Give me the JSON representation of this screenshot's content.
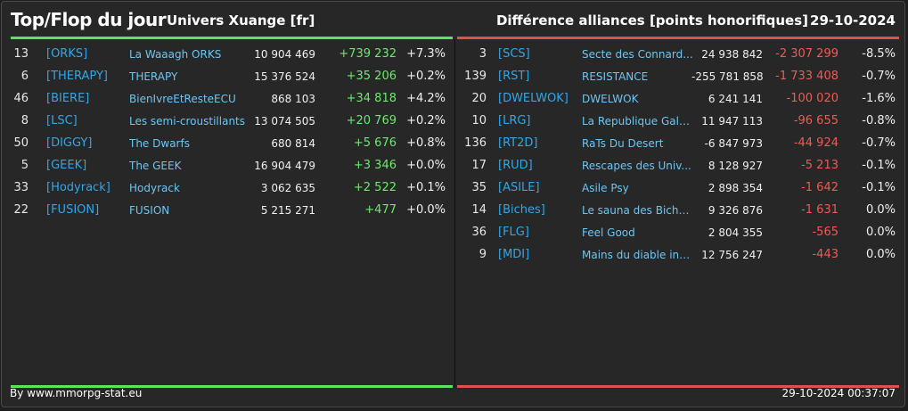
{
  "header": {
    "title": "Top/Flop du jour",
    "universe": "Univers Xuange [fr]",
    "subject": "Différence alliances [points honorifiques]",
    "date": "29-10-2024"
  },
  "colors": {
    "top": "#5ee35e",
    "flop": "#e0504c",
    "tag": "#33a6e8",
    "name": "#6ec5f2"
  },
  "top": [
    {
      "rank": "13",
      "tag": "[ORKS]",
      "name": "La Waaagh ORKS",
      "points": "10 904 469",
      "diff": "+739 232",
      "pct": "+7.3%"
    },
    {
      "rank": "6",
      "tag": "[THERAPY]",
      "name": "THERAPY",
      "points": "15 376 524",
      "diff": "+35 206",
      "pct": "+0.2%"
    },
    {
      "rank": "46",
      "tag": "[BIERE]",
      "name": "BienIvreEtResteECU",
      "points": "868 103",
      "diff": "+34 818",
      "pct": "+4.2%"
    },
    {
      "rank": "8",
      "tag": "[LSC]",
      "name": "Les semi-croustillants",
      "points": "13 074 505",
      "diff": "+20 769",
      "pct": "+0.2%"
    },
    {
      "rank": "50",
      "tag": "[DIGGY]",
      "name": "The Dwarfs",
      "points": "680 814",
      "diff": "+5 676",
      "pct": "+0.8%"
    },
    {
      "rank": "5",
      "tag": "[GEEK]",
      "name": "The GEEK",
      "points": "16 904 479",
      "diff": "+3 346",
      "pct": "+0.0%"
    },
    {
      "rank": "33",
      "tag": "[Hodyrack]",
      "name": "Hodyrack",
      "points": "3 062 635",
      "diff": "+2 522",
      "pct": "+0.1%"
    },
    {
      "rank": "22",
      "tag": "[FUSION]",
      "name": "FUSION",
      "points": "5 215 271",
      "diff": "+477",
      "pct": "+0.0%"
    }
  ],
  "flop": [
    {
      "rank": "3",
      "tag": "[SCS]",
      "name": "Secte des Connard...",
      "points": "24 938 842",
      "diff": "-2 307 299",
      "pct": "-8.5%"
    },
    {
      "rank": "139",
      "tag": "[RST]",
      "name": "RESISTANCE",
      "points": "-255 781 858",
      "diff": "-1 733 408",
      "pct": "-0.7%"
    },
    {
      "rank": "20",
      "tag": "[DWELWOK]",
      "name": "DWELWOK",
      "points": "6 241 141",
      "diff": "-100 020",
      "pct": "-1.6%"
    },
    {
      "rank": "10",
      "tag": "[LRG]",
      "name": "La Republique Gala...",
      "points": "11 947 113",
      "diff": "-96 655",
      "pct": "-0.8%"
    },
    {
      "rank": "136",
      "tag": "[RT2D]",
      "name": "RaTs Du Desert",
      "points": "-6 847 973",
      "diff": "-44 924",
      "pct": "-0.7%"
    },
    {
      "rank": "17",
      "tag": "[RUD]",
      "name": "Rescapes des Univ...",
      "points": "8 128 927",
      "diff": "-5 213",
      "pct": "-0.1%"
    },
    {
      "rank": "35",
      "tag": "[ASILE]",
      "name": "Asile Psy",
      "points": "2 898 354",
      "diff": "-1 642",
      "pct": "-0.1%"
    },
    {
      "rank": "14",
      "tag": "[Biches]",
      "name": "Le sauna des Biche...",
      "points": "9 326 876",
      "diff": "-1 631",
      "pct": "0.0%"
    },
    {
      "rank": "36",
      "tag": "[FLG]",
      "name": "Feel Good",
      "points": "2 804 355",
      "diff": "-565",
      "pct": "0.0%"
    },
    {
      "rank": "9",
      "tag": "[MDI]",
      "name": "Mains du diable inco...",
      "points": "12 756 247",
      "diff": "-443",
      "pct": "0.0%"
    }
  ],
  "footer": {
    "source": "By www.mmorpg-stat.eu",
    "timestamp": "29-10-2024 00:37:07"
  }
}
